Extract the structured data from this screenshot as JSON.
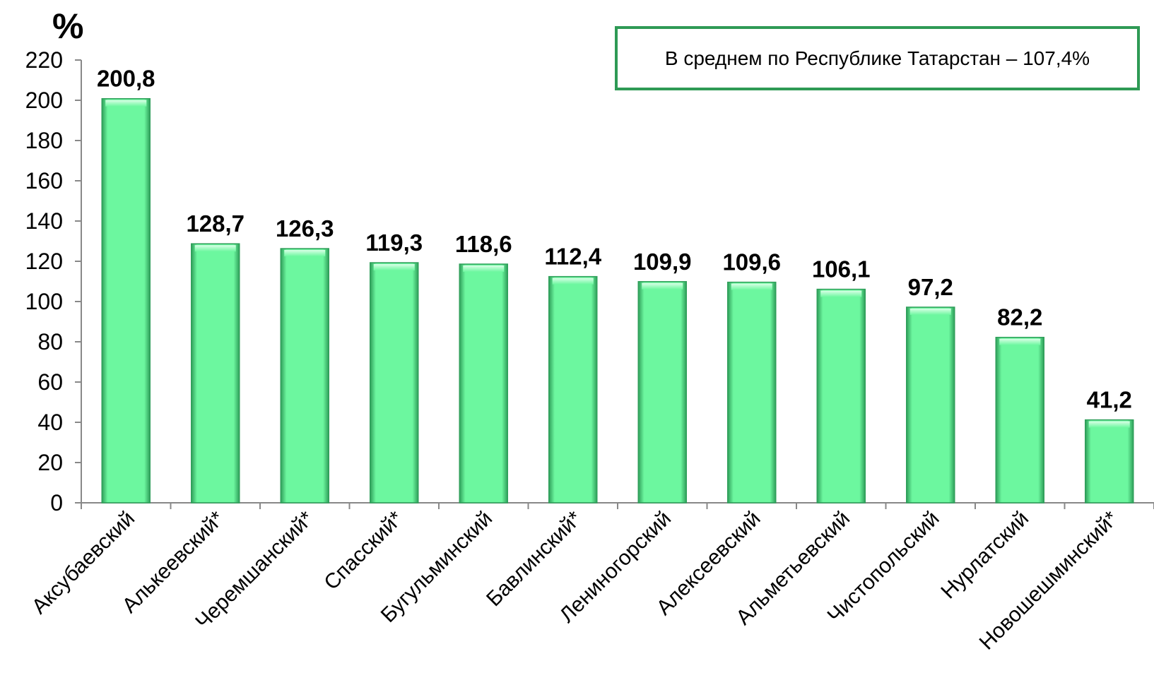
{
  "chart_data": {
    "type": "bar",
    "title": "",
    "ylabel": "%",
    "xlabel": "",
    "ylim": [
      0,
      220
    ],
    "yticks": [
      0,
      20,
      40,
      60,
      80,
      100,
      120,
      140,
      160,
      180,
      200,
      220
    ],
    "categories": [
      "Аксубаевский",
      "Алькеевский*",
      "Черемшанский*",
      "Спасский*",
      "Бугульминский",
      "Бавлинский*",
      "Лениногорский",
      "Алексеевский",
      "Альметьевский",
      "Чистопольский",
      "Нурлатский",
      "Новошешминский*"
    ],
    "values": [
      200.8,
      128.7,
      126.3,
      119.3,
      118.6,
      112.4,
      109.9,
      109.6,
      106.1,
      97.2,
      82.2,
      41.2
    ],
    "value_labels": [
      "200,8",
      "128,7",
      "126,3",
      "119,3",
      "118,6",
      "112,4",
      "109,9",
      "109,6",
      "106,1",
      "97,2",
      "82,2",
      "41,2"
    ],
    "grid": false,
    "bar_color": "#6cf79f",
    "bar_edge_color": "#2f9f5a",
    "annotation": "В среднем по Республике Татарстан – 107,4%"
  }
}
